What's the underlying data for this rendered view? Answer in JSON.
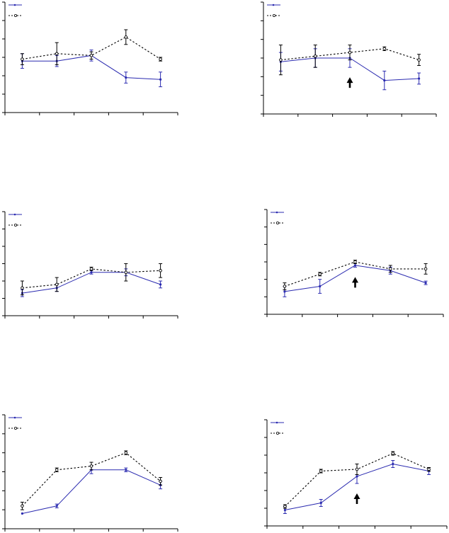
{
  "figure": {
    "background": "#ffffff"
  },
  "styles": {
    "solid_color": "#2b2bb0",
    "dashed_color": "#000000",
    "axis_color": "#000000"
  },
  "chart_data": [
    {
      "type": "line",
      "title": "",
      "grid": false,
      "legend_position": "top-left",
      "x": [
        1,
        2,
        3,
        4,
        5
      ],
      "ylim": [
        0,
        6
      ],
      "xlim": [
        0.5,
        5.5
      ],
      "y_tick_count": 6,
      "x_tick_count": 5,
      "arrow_at_x": null,
      "series": [
        {
          "style": "solid",
          "values": [
            2.8,
            2.8,
            3.1,
            1.9,
            1.8
          ],
          "errors": [
            0.4,
            0.3,
            0.3,
            0.3,
            0.4
          ]
        },
        {
          "style": "dashed",
          "values": [
            2.9,
            3.2,
            3.1,
            4.1,
            2.9
          ],
          "errors": [
            0.3,
            0.6,
            0.2,
            0.4,
            0.1
          ]
        }
      ]
    },
    {
      "type": "line",
      "title": "",
      "grid": false,
      "legend_position": "top-left",
      "x": [
        1,
        2,
        3,
        4,
        5
      ],
      "ylim": [
        0,
        6
      ],
      "xlim": [
        0.5,
        5.5
      ],
      "y_tick_count": 6,
      "x_tick_count": 5,
      "arrow_at_x": 3,
      "series": [
        {
          "style": "solid",
          "values": [
            2.8,
            3.0,
            3.0,
            1.8,
            1.9
          ],
          "errors": [
            0.5,
            0.5,
            0.5,
            0.5,
            0.3
          ]
        },
        {
          "style": "dashed",
          "values": [
            2.9,
            3.1,
            3.3,
            3.5,
            2.9
          ],
          "errors": [
            0.8,
            0.6,
            0.4,
            0.1,
            0.3
          ]
        }
      ]
    },
    {
      "type": "line",
      "title": "",
      "grid": false,
      "legend_position": "top-left",
      "x": [
        1,
        2,
        3,
        4,
        5
      ],
      "ylim": [
        0,
        6
      ],
      "xlim": [
        0.5,
        5.5
      ],
      "y_tick_count": 6,
      "x_tick_count": 5,
      "arrow_at_x": null,
      "series": [
        {
          "style": "solid",
          "values": [
            1.3,
            1.6,
            2.5,
            2.5,
            1.8
          ],
          "errors": [
            0.2,
            0.2,
            0.1,
            0.2,
            0.2
          ]
        },
        {
          "style": "dashed",
          "values": [
            1.6,
            1.8,
            2.7,
            2.5,
            2.6
          ],
          "errors": [
            0.4,
            0.4,
            0.1,
            0.5,
            0.4
          ]
        }
      ]
    },
    {
      "type": "line",
      "title": "",
      "grid": false,
      "legend_position": "top-left",
      "x": [
        1,
        2,
        3,
        4,
        5
      ],
      "ylim": [
        0,
        6
      ],
      "xlim": [
        0.5,
        5.5
      ],
      "y_tick_count": 6,
      "x_tick_count": 5,
      "arrow_at_x": 3,
      "series": [
        {
          "style": "solid",
          "values": [
            1.3,
            1.6,
            2.8,
            2.5,
            1.8
          ],
          "errors": [
            0.3,
            0.4,
            0.1,
            0.2,
            0.1
          ]
        },
        {
          "style": "dashed",
          "values": [
            1.6,
            2.3,
            3.0,
            2.6,
            2.6
          ],
          "errors": [
            0.2,
            0.1,
            0.1,
            0.2,
            0.3
          ]
        }
      ]
    },
    {
      "type": "line",
      "title": "",
      "grid": false,
      "legend_position": "top-left",
      "x": [
        1,
        2,
        3,
        4,
        5
      ],
      "ylim": [
        0,
        6
      ],
      "xlim": [
        0.5,
        5.5
      ],
      "y_tick_count": 6,
      "x_tick_count": 5,
      "arrow_at_x": null,
      "series": [
        {
          "style": "solid",
          "values": [
            0.8,
            1.2,
            3.1,
            3.1,
            2.3
          ],
          "errors": [
            0.0,
            0.1,
            0.2,
            0.1,
            0.2
          ]
        },
        {
          "style": "dashed",
          "values": [
            1.2,
            3.1,
            3.3,
            4.0,
            2.5
          ],
          "errors": [
            0.2,
            0.1,
            0.2,
            0.1,
            0.2
          ]
        }
      ]
    },
    {
      "type": "line",
      "title": "",
      "grid": false,
      "legend_position": "top-left",
      "x": [
        1,
        2,
        3,
        4,
        5
      ],
      "ylim": [
        0,
        6
      ],
      "xlim": [
        0.5,
        5.5
      ],
      "y_tick_count": 6,
      "x_tick_count": 5,
      "arrow_at_x": 3,
      "series": [
        {
          "style": "solid",
          "values": [
            0.9,
            1.3,
            2.8,
            3.5,
            3.1
          ],
          "errors": [
            0.2,
            0.2,
            0.4,
            0.2,
            0.2
          ]
        },
        {
          "style": "dashed",
          "values": [
            1.1,
            3.1,
            3.2,
            4.1,
            3.2
          ],
          "errors": [
            0.1,
            0.1,
            0.3,
            0.1,
            0.1
          ]
        }
      ]
    }
  ]
}
